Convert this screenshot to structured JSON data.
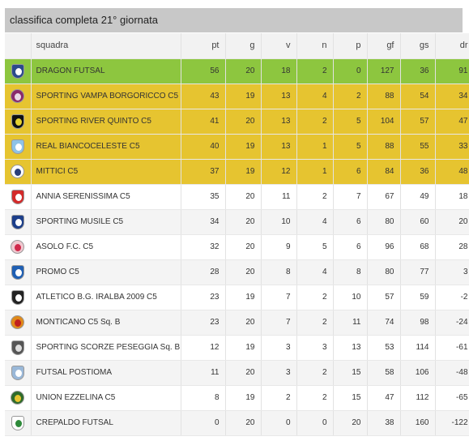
{
  "title": "classifica completa 21° giornata",
  "headers": {
    "squadra": "squadra",
    "pt": "pt",
    "g": "g",
    "v": "v",
    "n": "n",
    "p": "p",
    "gf": "gf",
    "gs": "gs",
    "dr": "dr"
  },
  "colors": {
    "champion": "#8dc63f",
    "top": "#e6c430",
    "header": "#c8c8c8"
  },
  "rows": [
    {
      "squadra": "DRAGON FUTSAL",
      "pt": "56",
      "g": "20",
      "v": "18",
      "n": "2",
      "p": "0",
      "gf": "127",
      "gs": "36",
      "dr": "91",
      "logo": "dragon-logo-icon",
      "logo_color": "#2b4a8b",
      "inner_color": "#ffffff"
    },
    {
      "squadra": "SPORTING VAMPA BORGORICCO C5",
      "pt": "43",
      "g": "19",
      "v": "13",
      "n": "4",
      "p": "2",
      "gf": "88",
      "gs": "54",
      "dr": "34",
      "logo": "vampa-logo-icon",
      "logo_color": "#8a2a6b",
      "inner_color": "#e9d9e6"
    },
    {
      "squadra": "SPORTING RIVER QUINTO C5",
      "pt": "41",
      "g": "20",
      "v": "13",
      "n": "2",
      "p": "5",
      "gf": "104",
      "gs": "57",
      "dr": "47",
      "logo": "river-logo-icon",
      "logo_color": "#111111",
      "inner_color": "#e6d230"
    },
    {
      "squadra": "REAL BIANCOCELESTE C5",
      "pt": "40",
      "g": "19",
      "v": "13",
      "n": "1",
      "p": "5",
      "gf": "88",
      "gs": "55",
      "dr": "33",
      "logo": "biancoceleste-logo-icon",
      "logo_color": "#8fc3e6",
      "inner_color": "#ffffff"
    },
    {
      "squadra": "MITTICI C5",
      "pt": "37",
      "g": "19",
      "v": "12",
      "n": "1",
      "p": "6",
      "gf": "84",
      "gs": "36",
      "dr": "48",
      "logo": "mittici-logo-icon",
      "logo_color": "#ffffff",
      "inner_color": "#2a3f7a"
    },
    {
      "squadra": "ANNIA SERENISSIMA C5",
      "pt": "35",
      "g": "20",
      "v": "11",
      "n": "2",
      "p": "7",
      "gf": "67",
      "gs": "49",
      "dr": "18",
      "logo": "annia-logo-icon",
      "logo_color": "#d32a2a",
      "inner_color": "#ffffff"
    },
    {
      "squadra": "SPORTING MUSILE C5",
      "pt": "34",
      "g": "20",
      "v": "10",
      "n": "4",
      "p": "6",
      "gf": "80",
      "gs": "60",
      "dr": "20",
      "logo": "musile-logo-icon",
      "logo_color": "#1d3f8a",
      "inner_color": "#ffffff"
    },
    {
      "squadra": "ASOLO F.C. C5",
      "pt": "32",
      "g": "20",
      "v": "9",
      "n": "5",
      "p": "6",
      "gf": "96",
      "gs": "68",
      "dr": "28",
      "logo": "asolo-logo-icon",
      "logo_color": "#f0c8d0",
      "inner_color": "#d0284a"
    },
    {
      "squadra": "PROMO C5",
      "pt": "28",
      "g": "20",
      "v": "8",
      "n": "4",
      "p": "8",
      "gf": "80",
      "gs": "77",
      "dr": "3",
      "logo": "promo-logo-icon",
      "logo_color": "#1f5fb3",
      "inner_color": "#ffffff"
    },
    {
      "squadra": "ATLETICO B.G. IRALBA 2009 C5",
      "pt": "23",
      "g": "19",
      "v": "7",
      "n": "2",
      "p": "10",
      "gf": "57",
      "gs": "59",
      "dr": "-2",
      "logo": "atletico-logo-icon",
      "logo_color": "#222222",
      "inner_color": "#ffffff"
    },
    {
      "squadra": "MONTICANO C5 Sq. B",
      "pt": "23",
      "g": "20",
      "v": "7",
      "n": "2",
      "p": "11",
      "gf": "74",
      "gs": "98",
      "dr": "-24",
      "logo": "monticano-logo-icon",
      "logo_color": "#e08a1a",
      "inner_color": "#c02020"
    },
    {
      "squadra": "SPORTING SCORZE PESEGGIA Sq. B",
      "pt": "12",
      "g": "19",
      "v": "3",
      "n": "3",
      "p": "13",
      "gf": "53",
      "gs": "114",
      "dr": "-61",
      "logo": "scorze-logo-icon",
      "logo_color": "#555555",
      "inner_color": "#dddddd"
    },
    {
      "squadra": "FUTSAL POSTIOMA",
      "pt": "11",
      "g": "20",
      "v": "3",
      "n": "2",
      "p": "15",
      "gf": "58",
      "gs": "106",
      "dr": "-48",
      "logo": "postioma-logo-icon",
      "logo_color": "#9ab8d8",
      "inner_color": "#ffffff"
    },
    {
      "squadra": "UNION EZZELINA C5",
      "pt": "8",
      "g": "19",
      "v": "2",
      "n": "2",
      "p": "15",
      "gf": "47",
      "gs": "112",
      "dr": "-65",
      "logo": "ezzelina-logo-icon",
      "logo_color": "#2e6b2a",
      "inner_color": "#e6c430"
    },
    {
      "squadra": "CREPALDO FUTSAL",
      "pt": "0",
      "g": "20",
      "v": "0",
      "n": "0",
      "p": "20",
      "gf": "38",
      "gs": "160",
      "dr": "-122",
      "logo": "crepaldo-logo-icon",
      "logo_color": "#ffffff",
      "inner_color": "#2e8a3a"
    }
  ]
}
